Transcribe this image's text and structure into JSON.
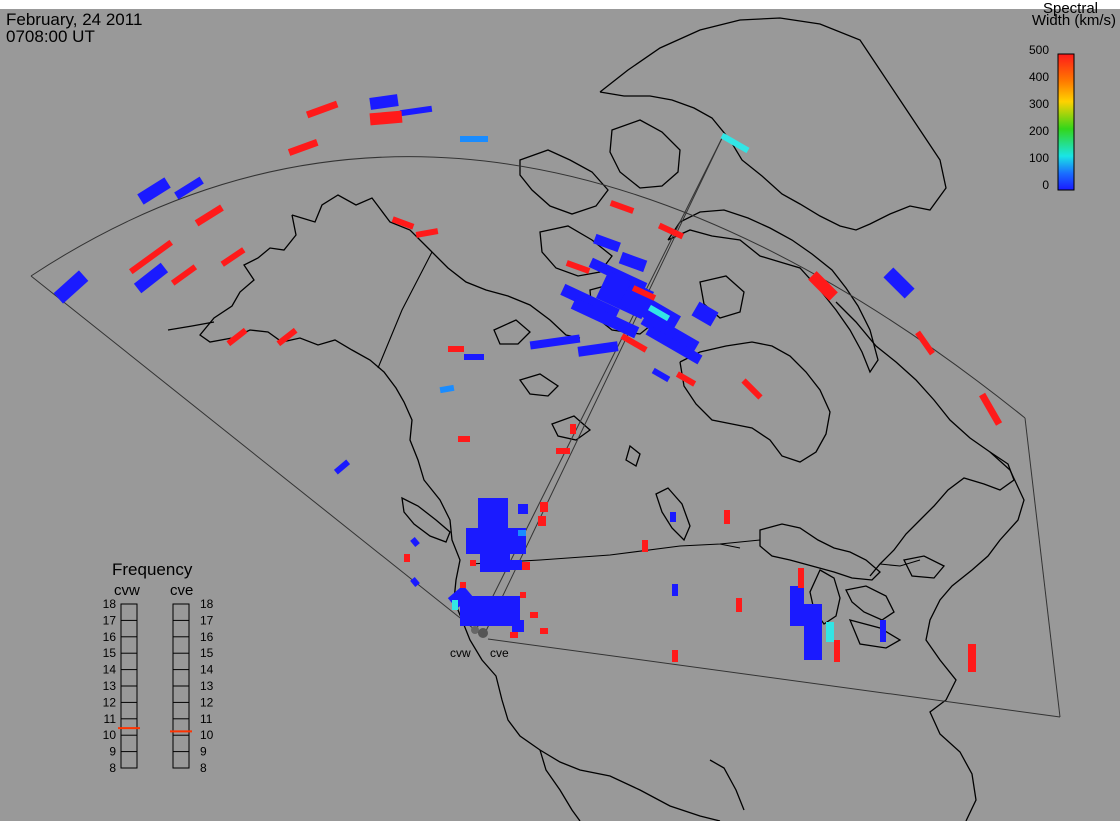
{
  "header": {
    "date": "February, 24 2011",
    "time": "0708:00 UT"
  },
  "colorbar": {
    "title_line1": "Spectral",
    "title_line2": "Width (km/s)",
    "ticks": [
      "500",
      "400",
      "300",
      "200",
      "100",
      "0"
    ],
    "range": [
      0,
      500
    ]
  },
  "frequency": {
    "title": "Frequency",
    "radars": [
      "cvw",
      "cve"
    ],
    "scale": [
      "18",
      "17",
      "16",
      "15",
      "14",
      "13",
      "12",
      "11",
      "10",
      "9",
      "8"
    ],
    "values": [
      10.8,
      10.6
    ],
    "marker_color": "#ff3300"
  },
  "sites": {
    "left": "cvw",
    "right": "cve"
  },
  "colors": {
    "background": "#999999",
    "low_width": "#1a1aff",
    "high_width": "#ff1a1a",
    "mid_width": "#1ab2ff",
    "cyan": "#33e5e5"
  }
}
